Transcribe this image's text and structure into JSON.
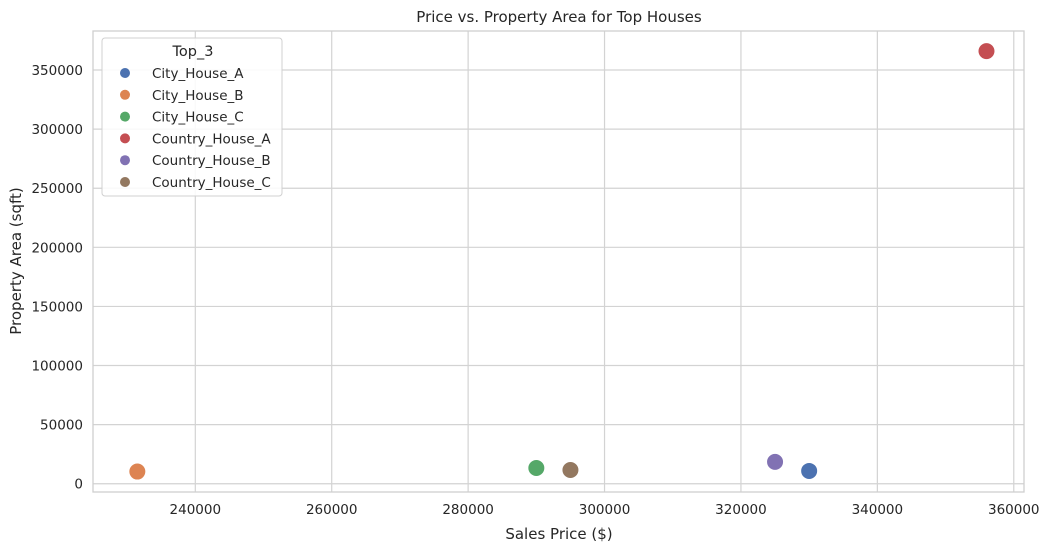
{
  "chart_data": {
    "type": "scatter",
    "title": "Price vs. Property Area for Top Houses",
    "xlabel": "Sales Price ($)",
    "ylabel": "Property Area (sqft)",
    "xlim": [
      225000,
      361500
    ],
    "ylim": [
      -7000,
      383000
    ],
    "xticks": [
      240000,
      260000,
      280000,
      300000,
      320000,
      340000,
      360000
    ],
    "yticks": [
      0,
      50000,
      100000,
      150000,
      200000,
      250000,
      300000,
      350000
    ],
    "grid": true,
    "legend": {
      "title": "Top_3",
      "placement": "top-left"
    },
    "series": [
      {
        "name": "City_House_A",
        "color": "#4c72b0",
        "points": [
          {
            "x": 330000,
            "y": 10800
          }
        ]
      },
      {
        "name": "City_House_B",
        "color": "#dd8452",
        "points": [
          {
            "x": 231500,
            "y": 10300
          }
        ]
      },
      {
        "name": "City_House_C",
        "color": "#55a868",
        "points": [
          {
            "x": 290000,
            "y": 13300
          }
        ]
      },
      {
        "name": "Country_House_A",
        "color": "#c44e52",
        "points": [
          {
            "x": 356000,
            "y": 366000
          }
        ]
      },
      {
        "name": "Country_House_B",
        "color": "#8172b3",
        "points": [
          {
            "x": 325000,
            "y": 18500
          }
        ]
      },
      {
        "name": "Country_House_C",
        "color": "#937860",
        "points": [
          {
            "x": 295000,
            "y": 11600
          }
        ]
      }
    ]
  }
}
